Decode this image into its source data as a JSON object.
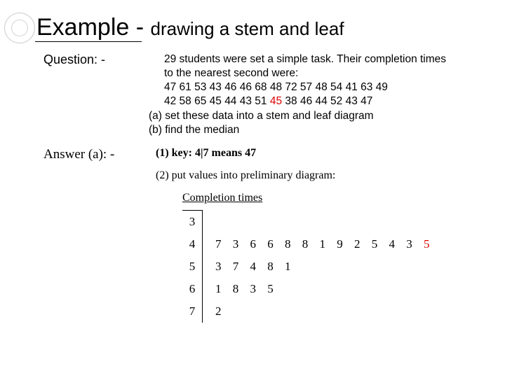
{
  "title": {
    "part1": "Example - ",
    "part2": "drawing a stem and leaf"
  },
  "question": {
    "label": "Question: -",
    "line1": "29 students were set a simple task.  Their completion times",
    "line2": "to the nearest second were:",
    "data1": "47  61  53  43  46  46  68  48  72  57  48  54  41  63  49",
    "data2a": "42  58  65  45  44  43  51  ",
    "data2_red": "45",
    "data2b": "  38  46  44  52  43  47",
    "task_a": "(a) set these data into a stem and leaf diagram",
    "task_b": "(b) find the median"
  },
  "answer": {
    "label": "Answer (a): -",
    "step1": "(1)  key:   4|7 means 47",
    "step2": "(2)  put values into preliminary diagram:",
    "ct_title": "Completion times",
    "rows": [
      {
        "stem": "3",
        "leaves": "",
        "red": ""
      },
      {
        "stem": "4",
        "leaves": "7 3 6 6 8 8 1 9 2 5 4 3 ",
        "red": "5"
      },
      {
        "stem": "5",
        "leaves": "3 7 4 8 1",
        "red": ""
      },
      {
        "stem": "6",
        "leaves": "1 8 3 5",
        "red": ""
      },
      {
        "stem": "7",
        "leaves": "2",
        "red": ""
      }
    ]
  },
  "colors": {
    "red": "#e00000",
    "text": "#000000",
    "bg": "#ffffff"
  }
}
